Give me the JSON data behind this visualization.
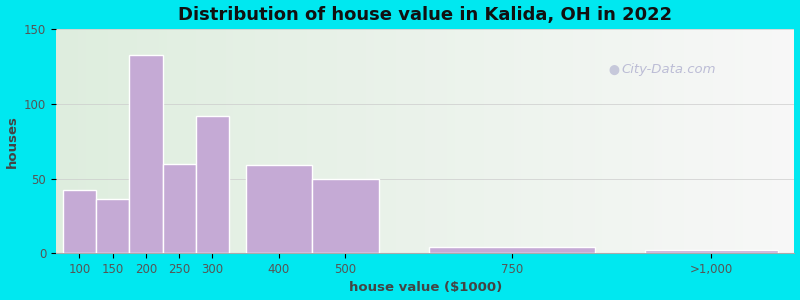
{
  "title": "Distribution of house value in Kalida, OH in 2022",
  "xlabel": "house value ($1000)",
  "ylabel": "houses",
  "bar_centers": [
    100,
    150,
    200,
    250,
    300,
    400,
    500,
    750,
    1050
  ],
  "bar_widths": [
    50,
    50,
    50,
    50,
    50,
    100,
    100,
    250,
    200
  ],
  "bar_values": [
    42,
    36,
    133,
    60,
    92,
    59,
    50,
    4,
    2
  ],
  "bar_color": "#c5aad5",
  "bar_edgecolor": "#ffffff",
  "bg_outer": "#00e8f0",
  "bg_inner": "#e8f2e0",
  "ylim": [
    0,
    150
  ],
  "yticks": [
    0,
    50,
    100,
    150
  ],
  "xlim_min": 65,
  "xlim_max": 1175,
  "xtick_positions": [
    100,
    150,
    200,
    250,
    300,
    400,
    500,
    750,
    1050
  ],
  "xtick_labels": [
    "100",
    "150",
    "200",
    "250",
    "300",
    "400",
    "500",
    "750",
    ">1,000"
  ],
  "title_fontsize": 13,
  "label_fontsize": 9.5,
  "tick_fontsize": 8.5,
  "watermark_text": "City-Data.com"
}
